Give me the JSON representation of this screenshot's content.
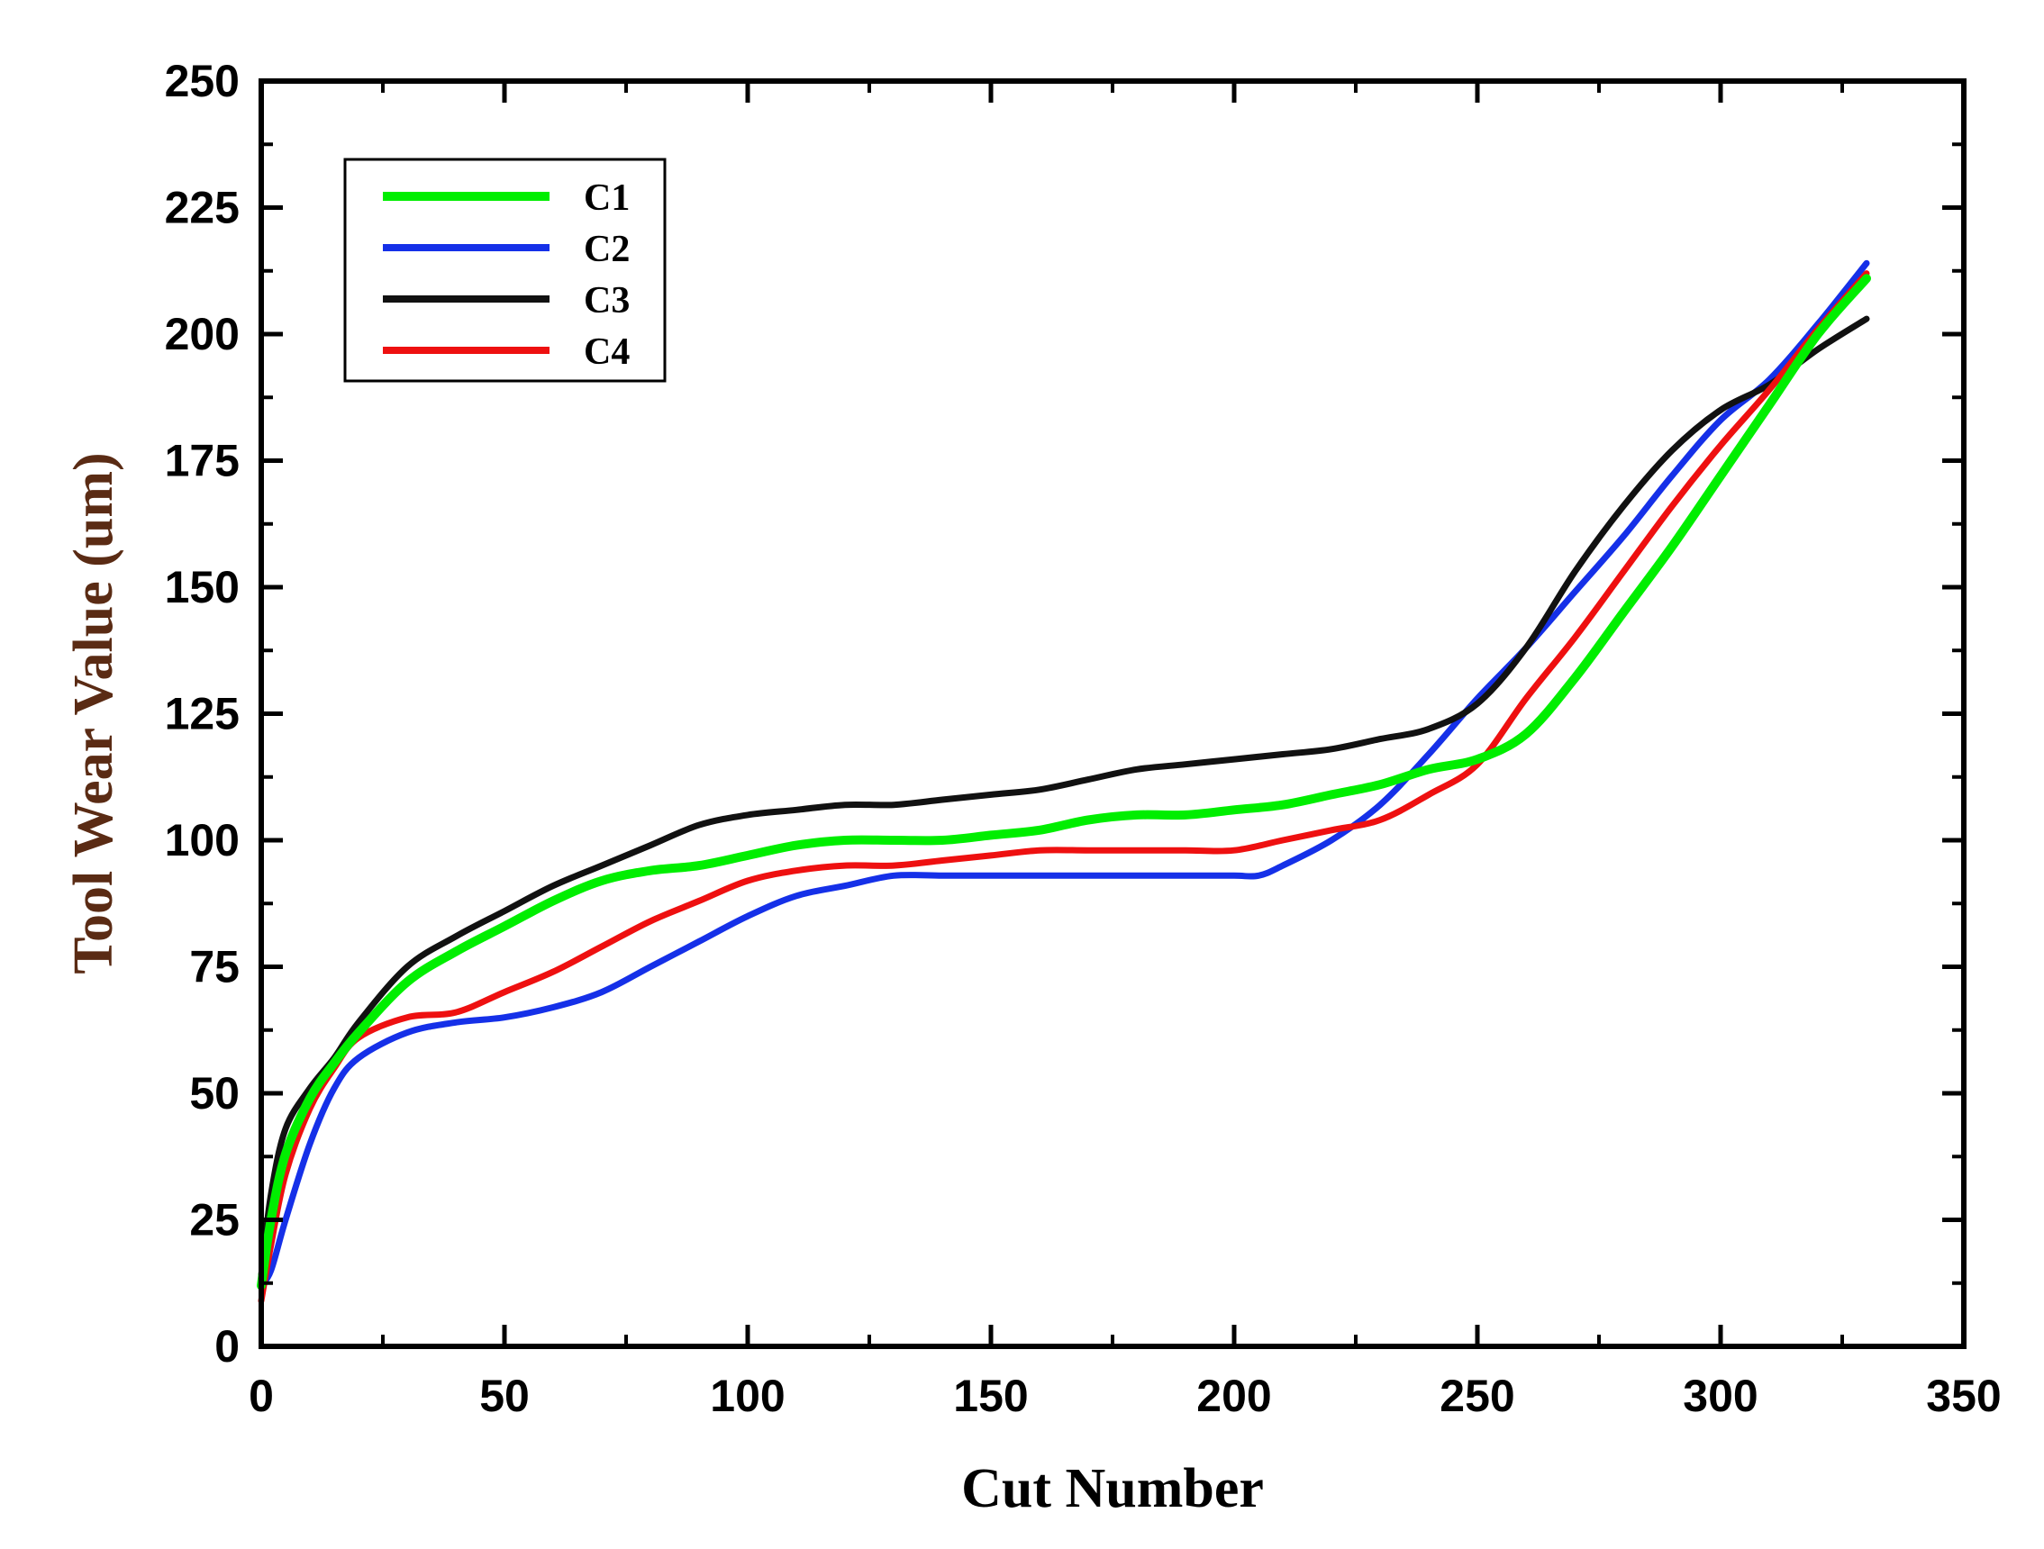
{
  "chart_data": {
    "type": "line",
    "title": "",
    "xlabel": "Cut Number",
    "ylabel": "Tool Wear Value (um)",
    "xlim": [
      0,
      350
    ],
    "ylim": [
      0,
      250
    ],
    "x_ticks": [
      0,
      50,
      100,
      150,
      200,
      250,
      300,
      350
    ],
    "y_ticks": [
      0,
      25,
      50,
      75,
      100,
      125,
      150,
      175,
      200,
      225,
      250
    ],
    "grid": false,
    "legend_position": "top-left",
    "xlabel_color": "#000000",
    "ylabel_color": "#5a2b14",
    "series": [
      {
        "name": "C1",
        "color": "#00ee00",
        "points": [
          [
            0,
            12
          ],
          [
            2,
            25
          ],
          [
            5,
            38
          ],
          [
            10,
            49
          ],
          [
            15,
            56
          ],
          [
            20,
            62
          ],
          [
            30,
            72
          ],
          [
            40,
            78
          ],
          [
            50,
            83
          ],
          [
            60,
            88
          ],
          [
            70,
            92
          ],
          [
            80,
            94
          ],
          [
            90,
            95
          ],
          [
            100,
            97
          ],
          [
            110,
            99
          ],
          [
            120,
            100
          ],
          [
            130,
            100
          ],
          [
            140,
            100
          ],
          [
            150,
            101
          ],
          [
            160,
            102
          ],
          [
            170,
            104
          ],
          [
            180,
            105
          ],
          [
            190,
            105
          ],
          [
            200,
            106
          ],
          [
            210,
            107
          ],
          [
            220,
            109
          ],
          [
            230,
            111
          ],
          [
            240,
            114
          ],
          [
            250,
            116
          ],
          [
            260,
            121
          ],
          [
            270,
            132
          ],
          [
            280,
            145
          ],
          [
            290,
            158
          ],
          [
            300,
            172
          ],
          [
            310,
            186
          ],
          [
            320,
            200
          ],
          [
            330,
            211
          ]
        ]
      },
      {
        "name": "C2",
        "color": "#1530e8",
        "points": [
          [
            0,
            12
          ],
          [
            2,
            15
          ],
          [
            5,
            25
          ],
          [
            10,
            40
          ],
          [
            15,
            51
          ],
          [
            20,
            57
          ],
          [
            30,
            62
          ],
          [
            40,
            64
          ],
          [
            50,
            65
          ],
          [
            60,
            67
          ],
          [
            70,
            70
          ],
          [
            80,
            75
          ],
          [
            90,
            80
          ],
          [
            100,
            85
          ],
          [
            110,
            89
          ],
          [
            120,
            91
          ],
          [
            130,
            93
          ],
          [
            140,
            93
          ],
          [
            150,
            93
          ],
          [
            160,
            93
          ],
          [
            170,
            93
          ],
          [
            180,
            93
          ],
          [
            190,
            93
          ],
          [
            200,
            93
          ],
          [
            205,
            93
          ],
          [
            210,
            95
          ],
          [
            220,
            100
          ],
          [
            230,
            107
          ],
          [
            240,
            117
          ],
          [
            250,
            128
          ],
          [
            260,
            138
          ],
          [
            270,
            149
          ],
          [
            280,
            160
          ],
          [
            290,
            172
          ],
          [
            300,
            183
          ],
          [
            310,
            191
          ],
          [
            320,
            202
          ],
          [
            330,
            214
          ]
        ]
      },
      {
        "name": "C3",
        "color": "#111111",
        "points": [
          [
            0,
            14
          ],
          [
            2,
            30
          ],
          [
            5,
            43
          ],
          [
            10,
            51
          ],
          [
            15,
            57
          ],
          [
            20,
            64
          ],
          [
            30,
            75
          ],
          [
            40,
            81
          ],
          [
            50,
            86
          ],
          [
            60,
            91
          ],
          [
            70,
            95
          ],
          [
            80,
            99
          ],
          [
            90,
            103
          ],
          [
            100,
            105
          ],
          [
            110,
            106
          ],
          [
            120,
            107
          ],
          [
            130,
            107
          ],
          [
            140,
            108
          ],
          [
            150,
            109
          ],
          [
            160,
            110
          ],
          [
            170,
            112
          ],
          [
            180,
            114
          ],
          [
            190,
            115
          ],
          [
            200,
            116
          ],
          [
            210,
            117
          ],
          [
            220,
            118
          ],
          [
            230,
            120
          ],
          [
            240,
            122
          ],
          [
            250,
            127
          ],
          [
            260,
            138
          ],
          [
            270,
            153
          ],
          [
            280,
            166
          ],
          [
            290,
            177
          ],
          [
            300,
            185
          ],
          [
            310,
            190
          ],
          [
            320,
            197
          ],
          [
            330,
            203
          ]
        ]
      },
      {
        "name": "C4",
        "color": "#ee1010",
        "points": [
          [
            0,
            9
          ],
          [
            2,
            20
          ],
          [
            5,
            34
          ],
          [
            10,
            47
          ],
          [
            15,
            55
          ],
          [
            20,
            61
          ],
          [
            30,
            65
          ],
          [
            40,
            66
          ],
          [
            50,
            70
          ],
          [
            60,
            74
          ],
          [
            70,
            79
          ],
          [
            80,
            84
          ],
          [
            90,
            88
          ],
          [
            100,
            92
          ],
          [
            110,
            94
          ],
          [
            120,
            95
          ],
          [
            130,
            95
          ],
          [
            140,
            96
          ],
          [
            150,
            97
          ],
          [
            160,
            98
          ],
          [
            170,
            98
          ],
          [
            180,
            98
          ],
          [
            190,
            98
          ],
          [
            200,
            98
          ],
          [
            210,
            100
          ],
          [
            220,
            102
          ],
          [
            230,
            104
          ],
          [
            240,
            109
          ],
          [
            250,
            115
          ],
          [
            260,
            128
          ],
          [
            270,
            140
          ],
          [
            280,
            153
          ],
          [
            290,
            166
          ],
          [
            300,
            178
          ],
          [
            310,
            189
          ],
          [
            320,
            201
          ],
          [
            330,
            212
          ]
        ]
      }
    ]
  }
}
